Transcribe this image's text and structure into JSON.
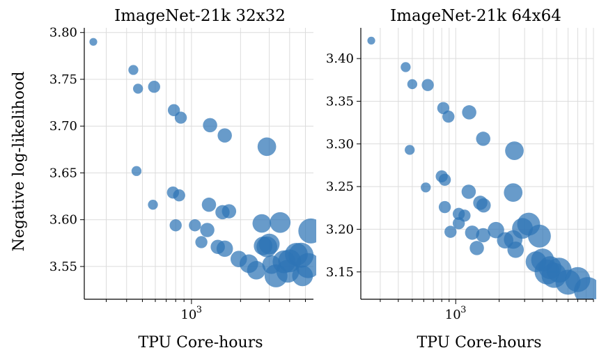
{
  "chart_data": [
    {
      "type": "scatter",
      "title": "ImageNet-21k 32x32",
      "xlabel": "TPU Core-hours",
      "ylabel": "Negative log-likelihood",
      "xscale": "log",
      "xlim": [
        220,
        5600
      ],
      "ylim": [
        3.515,
        3.805
      ],
      "yticks": [
        3.55,
        3.6,
        3.65,
        3.7,
        3.75,
        3.8
      ],
      "ytick_labels": [
        "3.55",
        "3.60",
        "3.65",
        "3.70",
        "3.75",
        "3.80"
      ],
      "xtick_major": 1000,
      "xtick_major_label": "10",
      "xtick_major_exp": "3",
      "x": [
        250,
        440,
        470,
        460,
        590,
        780,
        860,
        1300,
        1600,
        2900,
        770,
        580,
        840,
        800,
        1280,
        1550,
        1700,
        2700,
        3500,
        1050,
        1150,
        1250,
        1450,
        1600,
        1950,
        2250,
        2500,
        2750,
        2900,
        3000,
        3100,
        3700,
        4000,
        4400,
        4700,
        4800,
        5200,
        3300,
        3900,
        5400
      ],
      "y": [
        3.79,
        3.76,
        3.74,
        3.652,
        3.742,
        3.717,
        3.709,
        3.701,
        3.69,
        3.678,
        3.629,
        3.616,
        3.626,
        3.594,
        3.616,
        3.608,
        3.609,
        3.596,
        3.597,
        3.594,
        3.576,
        3.589,
        3.571,
        3.569,
        3.558,
        3.553,
        3.546,
        3.572,
        3.571,
        3.574,
        3.552,
        3.555,
        3.556,
        3.563,
        3.562,
        3.54,
        3.551,
        3.54,
        3.545,
        3.588
      ],
      "size": [
        2,
        3,
        3,
        3,
        4,
        4,
        4,
        5,
        5,
        7,
        4,
        3,
        4,
        4,
        5,
        5,
        5,
        7,
        8,
        4,
        4,
        5,
        5,
        6,
        6,
        7,
        7,
        7,
        8,
        8,
        7,
        9,
        9,
        9,
        10,
        8,
        10,
        9,
        9,
        10
      ]
    },
    {
      "type": "scatter",
      "title": "ImageNet-21k 64x64",
      "xlabel": "TPU Core-hours",
      "ylabel": "",
      "xscale": "log",
      "xlim": [
        220,
        9000
      ],
      "ylim": [
        3.118,
        3.436
      ],
      "yticks": [
        3.15,
        3.2,
        3.25,
        3.3,
        3.35,
        3.4
      ],
      "ytick_labels": [
        "3.15",
        "3.20",
        "3.25",
        "3.30",
        "3.35",
        "3.40"
      ],
      "xtick_major": 1000,
      "xtick_major_label": "10",
      "xtick_major_exp": "3",
      "x": [
        260,
        450,
        500,
        480,
        640,
        820,
        890,
        1240,
        1550,
        2550,
        620,
        800,
        840,
        840,
        1230,
        1480,
        1560,
        2500,
        3800,
        1050,
        1150,
        1050,
        1300,
        1550,
        1900,
        2200,
        2500,
        2600,
        2900,
        3200,
        3600,
        4000,
        4300,
        4500,
        4800,
        5200,
        6000,
        7000,
        8200,
        920,
        1400
      ],
      "y": [
        3.421,
        3.39,
        3.37,
        3.293,
        3.369,
        3.342,
        3.332,
        3.337,
        3.306,
        3.292,
        3.249,
        3.262,
        3.258,
        3.226,
        3.244,
        3.231,
        3.228,
        3.243,
        3.192,
        3.218,
        3.216,
        3.207,
        3.196,
        3.193,
        3.199,
        3.187,
        3.188,
        3.176,
        3.201,
        3.206,
        3.162,
        3.164,
        3.15,
        3.155,
        3.146,
        3.152,
        3.138,
        3.141,
        3.128,
        3.197,
        3.178
      ],
      "size": [
        2,
        3,
        3,
        3,
        4,
        4,
        4,
        5,
        5,
        7,
        3,
        4,
        4,
        4,
        5,
        5,
        5,
        7,
        9,
        4,
        4,
        4,
        5,
        5,
        6,
        6,
        7,
        6,
        8,
        9,
        8,
        9,
        10,
        9,
        10,
        10,
        10,
        10,
        11,
        4,
        5
      ]
    }
  ]
}
